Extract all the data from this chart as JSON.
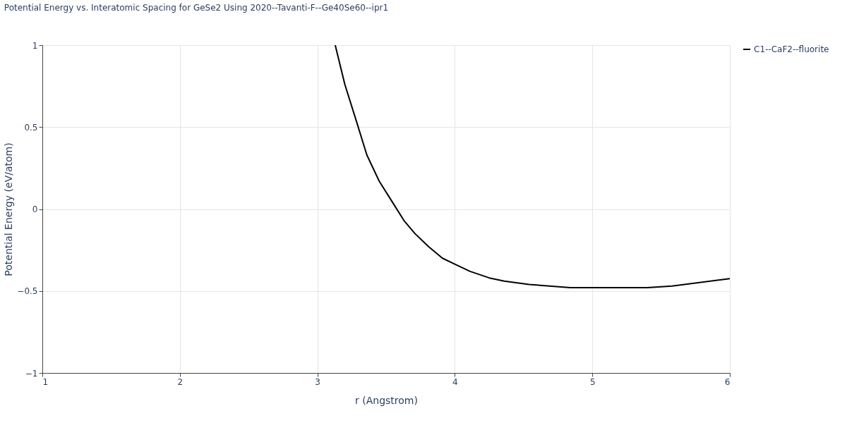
{
  "chart_data": {
    "type": "line",
    "title": "Potential Energy vs. Interatomic Spacing for GeSe2 Using 2020--Tavanti-F--Ge40Se60--ipr1",
    "xlabel": "r (Angstrom)",
    "ylabel": "Potential Energy (eV/atom)",
    "x": [
      3.13,
      3.2,
      3.29,
      3.36,
      3.45,
      3.54,
      3.63,
      3.71,
      3.81,
      3.91,
      4.01,
      4.11,
      4.25,
      4.36,
      4.54,
      4.84,
      5.02,
      5.4,
      5.58,
      6.0
    ],
    "series": [
      {
        "name": "C1--CaF2--fluorite",
        "color": "#000000",
        "values": [
          1.0,
          0.76,
          0.52,
          0.33,
          0.17,
          0.05,
          -0.07,
          -0.15,
          -0.23,
          -0.3,
          -0.34,
          -0.38,
          -0.42,
          -0.44,
          -0.46,
          -0.48,
          -0.48,
          -0.48,
          -0.47,
          -0.425
        ]
      }
    ],
    "xlim": [
      1,
      6
    ],
    "xticks": [
      1,
      2,
      3,
      4,
      5,
      6
    ],
    "ylim": [
      -1,
      1
    ],
    "yticks": [
      {
        "value": -1,
        "label": "−1"
      },
      {
        "value": -0.5,
        "label": "−0.5"
      },
      0,
      0.5,
      1
    ],
    "grid": true,
    "legend": "top right",
    "marker": "none",
    "line_style": "solid"
  }
}
